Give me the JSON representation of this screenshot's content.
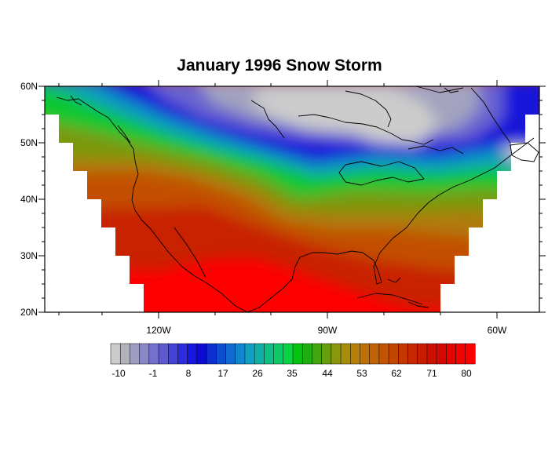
{
  "title": "January 1996 Snow Storm",
  "map": {
    "projection": "Lambert conformal conic (North America)",
    "lat_labels": [
      "60N",
      "50N",
      "40N",
      "30N",
      "20N"
    ],
    "lon_labels": [
      "120W",
      "90W",
      "60W"
    ],
    "features": [
      "continental outlines",
      "Great Lakes",
      "Hudson Bay",
      "Cuba",
      "Baja California"
    ]
  },
  "colorbar": {
    "labels": [
      "-10",
      "-1",
      "8",
      "17",
      "26",
      "35",
      "44",
      "53",
      "62",
      "71",
      "80"
    ],
    "colors": [
      "#cccccc",
      "#b2b2b9",
      "#9d9dc1",
      "#8b87c7",
      "#7470ce",
      "#5c59d3",
      "#4542d8",
      "#2d2cdc",
      "#1616e1",
      "#0b0bd3",
      "#0a2ed0",
      "#0d4dd0",
      "#0f6ad1",
      "#1186cf",
      "#11a0c2",
      "#10b0a6",
      "#0fbf87",
      "#0ccb66",
      "#0ad440",
      "#07c114",
      "#20ad12",
      "#43a610",
      "#679e0e",
      "#8a960c",
      "#a68e0a",
      "#b58008",
      "#bc7006",
      "#c06204",
      "#c15303",
      "#c24502",
      "#c43701",
      "#c62901",
      "#c81c00",
      "#cc1000",
      "#d50800",
      "#e30500",
      "#f00300",
      "#ff0000"
    ]
  }
}
